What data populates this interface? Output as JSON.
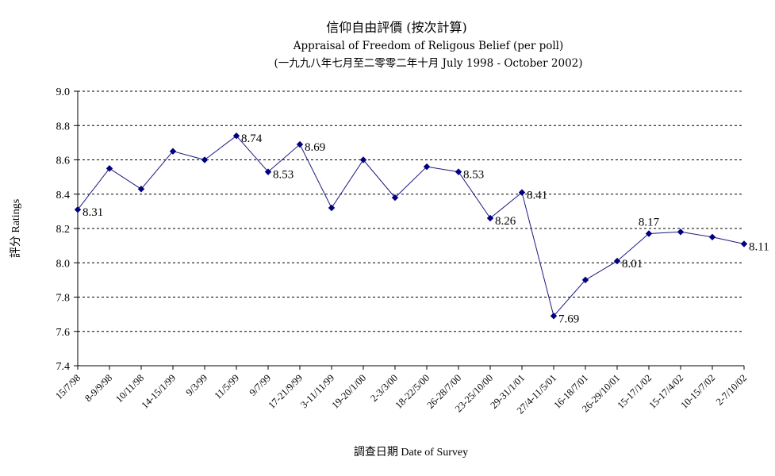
{
  "chart_data": {
    "type": "line",
    "title": "信仰自由評價 (按次計算)",
    "subtitle": "Appraisal of Freedom of Religous Belief (per poll)",
    "subtitle2": "(一九九八年七月至二零零二年十月 July 1998 - October 2002)",
    "xlabel": "調查日期 Date of Survey",
    "ylabel": "評分 Ratings",
    "ylim": [
      7.4,
      9.0
    ],
    "yticks": [
      "7.4",
      "7.6",
      "7.8",
      "8.0",
      "8.2",
      "8.4",
      "8.6",
      "8.8",
      "9.0"
    ],
    "grid": true,
    "legend": "none",
    "line_color": "#1a1a80",
    "marker_color": "#000080",
    "categories": [
      "15/7/98",
      "8-9/9/98",
      "10/11/98",
      "14-15/1/99",
      "9/3/99",
      "11/5/99",
      "9/7/99",
      "17-21/9/99",
      "3-11/11/99",
      "19-20/1/00",
      "2-3/3/00",
      "18-22/5/00",
      "26-28/7/00",
      "23-25/10/00",
      "29-31/1/01",
      "27/4-11/5/01",
      "16-18/7/01",
      "26-29/10/01",
      "15-17/1/02",
      "15-17/4/02",
      "10-15/7/02",
      "2-7/10/02"
    ],
    "values": [
      8.31,
      8.55,
      8.43,
      8.65,
      8.6,
      8.74,
      8.53,
      8.69,
      8.32,
      8.6,
      8.38,
      8.56,
      8.53,
      8.26,
      8.41,
      7.69,
      7.9,
      8.01,
      8.17,
      8.18,
      8.15,
      8.11
    ],
    "data_labels": [
      {
        "index": 0,
        "text": "8.31",
        "pos": "right"
      },
      {
        "index": 5,
        "text": "8.74",
        "pos": "right"
      },
      {
        "index": 6,
        "text": "8.53",
        "pos": "right"
      },
      {
        "index": 7,
        "text": "8.69",
        "pos": "right"
      },
      {
        "index": 12,
        "text": "8.53",
        "pos": "right"
      },
      {
        "index": 13,
        "text": "8.26",
        "pos": "right"
      },
      {
        "index": 14,
        "text": "8.41",
        "pos": "right"
      },
      {
        "index": 15,
        "text": "7.69",
        "pos": "right"
      },
      {
        "index": 17,
        "text": "8.01",
        "pos": "right"
      },
      {
        "index": 18,
        "text": "8.17",
        "pos": "above"
      },
      {
        "index": 21,
        "text": "8.11",
        "pos": "right"
      }
    ]
  }
}
